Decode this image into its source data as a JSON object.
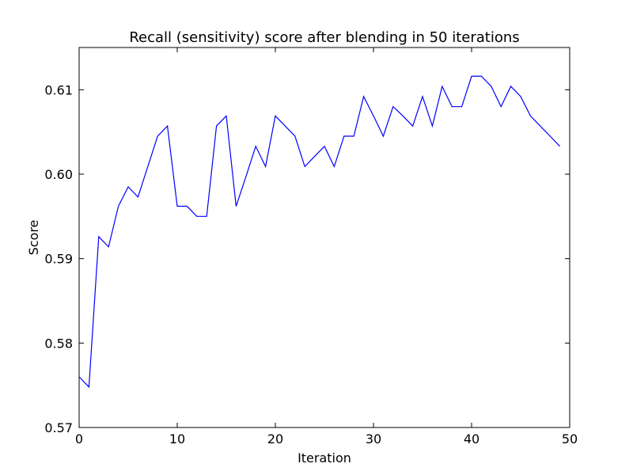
{
  "chart_data": {
    "type": "line",
    "title": "Recall (sensitivity) score after blending in 50 iterations",
    "xlabel": "Iteration",
    "ylabel": "Score",
    "xlim": [
      0,
      50
    ],
    "ylim": [
      0.57,
      0.615
    ],
    "x_ticks": [
      0,
      10,
      20,
      30,
      40,
      50
    ],
    "y_ticks": [
      0.57,
      0.58,
      0.59,
      0.6,
      0.61
    ],
    "x_tick_labels": [
      "0",
      "10",
      "20",
      "30",
      "40",
      "50"
    ],
    "y_tick_labels": [
      "0.57",
      "0.58",
      "0.59",
      "0.60",
      "0.61"
    ],
    "grid": false,
    "line_color": "#0000ff",
    "series": [
      {
        "x": [
          0,
          1,
          2,
          3,
          4,
          5,
          6,
          7,
          8,
          9,
          10,
          11,
          12,
          13,
          14,
          15,
          16,
          17,
          18,
          19,
          20,
          21,
          22,
          23,
          24,
          25,
          26,
          27,
          28,
          29,
          30,
          31,
          32,
          33,
          34,
          35,
          36,
          37,
          38,
          39,
          40,
          41,
          42,
          43,
          44,
          45,
          46,
          47,
          48,
          49
        ],
        "y": [
          0.576,
          0.5748,
          0.5926,
          0.5914,
          0.5962,
          0.5985,
          0.5973,
          0.6009,
          0.6045,
          0.6057,
          0.5962,
          0.5962,
          0.595,
          0.595,
          0.6057,
          0.6069,
          0.5962,
          0.5997,
          0.6033,
          0.6009,
          0.6069,
          0.6057,
          0.6045,
          0.6009,
          0.6021,
          0.6033,
          0.6009,
          0.6045,
          0.6045,
          0.6092,
          0.6069,
          0.6045,
          0.608,
          0.6069,
          0.6057,
          0.6092,
          0.6057,
          0.6104,
          0.608,
          0.608,
          0.6116,
          0.6116,
          0.6104,
          0.608,
          0.6104,
          0.6092,
          0.6069,
          0.6057,
          0.6045,
          0.6033
        ]
      }
    ]
  }
}
